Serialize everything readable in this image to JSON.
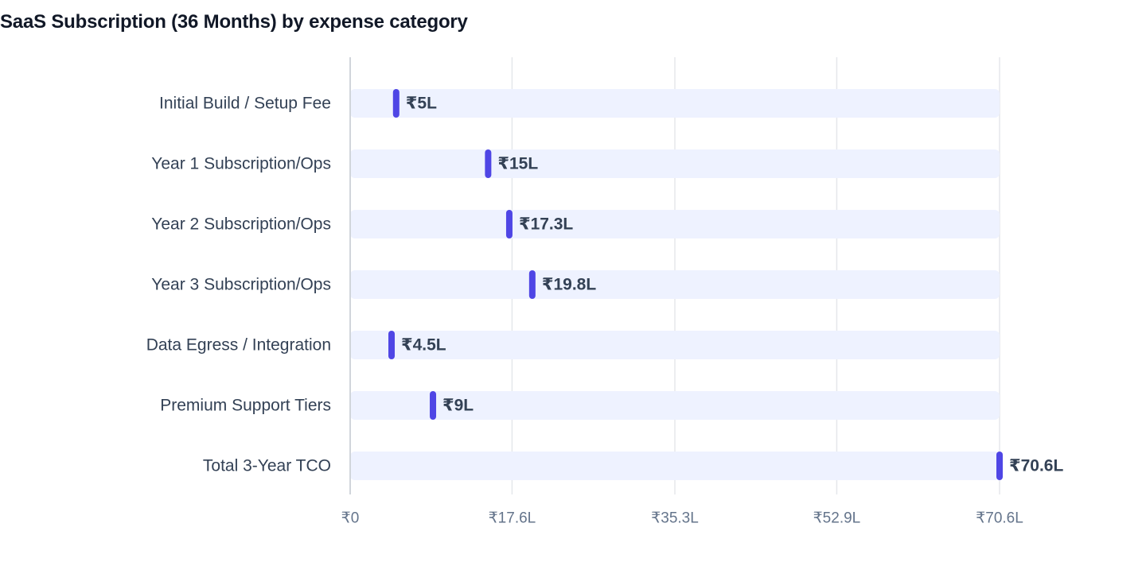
{
  "chart_data": {
    "type": "bar",
    "title": "SaaS Subscription (36 Months) by expense category",
    "xlabel": "",
    "ylabel": "",
    "unit": "₹ Lakh",
    "categories": [
      "Initial Build / Setup Fee",
      "Year 1 Subscription/Ops",
      "Year 2 Subscription/Ops",
      "Year 3 Subscription/Ops",
      "Data Egress / Integration",
      "Premium Support Tiers",
      "Total 3-Year TCO"
    ],
    "values": [
      5,
      15,
      17.3,
      19.8,
      4.5,
      9,
      70.6
    ],
    "value_labels": [
      "₹5L",
      "₹15L",
      "₹17.3L",
      "₹19.8L",
      "₹4.5L",
      "₹9L",
      "₹70.6L"
    ],
    "xlim": [
      0,
      70.6
    ],
    "ticks": [
      0,
      17.6,
      35.3,
      52.9,
      70.6
    ],
    "tick_labels": [
      "₹0",
      "₹17.6L",
      "₹35.3L",
      "₹52.9L",
      "₹70.6L"
    ],
    "orientation": "horizontal",
    "grid": true,
    "colors": {
      "marker": "#4f46e5",
      "track": "#eef2ff",
      "grid": "#e5e7eb",
      "axis": "#d1d5db"
    }
  }
}
